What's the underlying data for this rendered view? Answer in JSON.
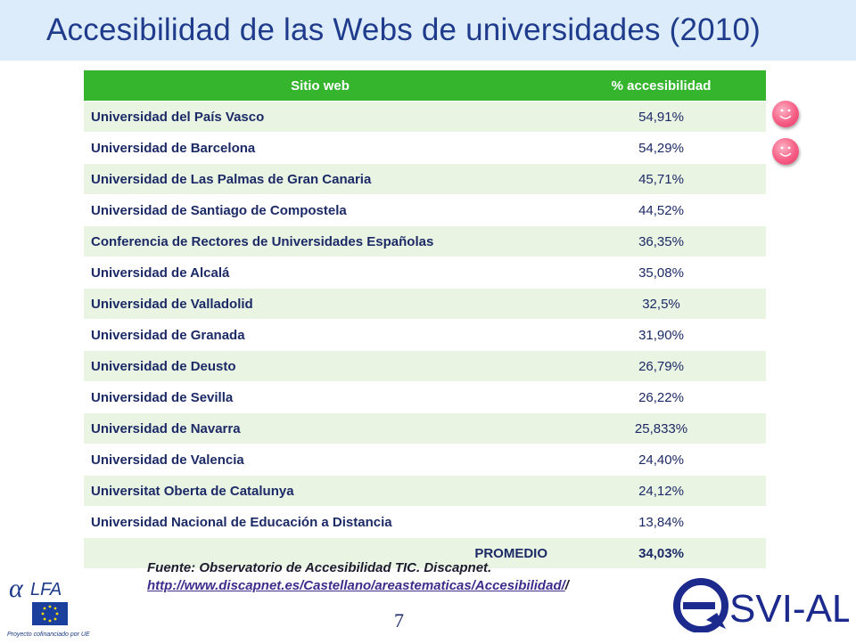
{
  "title": "Accesibilidad  de las Webs de universidades (2010)",
  "table": {
    "headers": [
      "Sitio web",
      "% accesibilidad"
    ],
    "rows": [
      {
        "site": "Universidad del País Vasco",
        "pct": "54,91%"
      },
      {
        "site": "Universidad de Barcelona",
        "pct": "54,29%"
      },
      {
        "site": "Universidad de Las Palmas de Gran Canaria",
        "pct": "45,71%"
      },
      {
        "site": "Universidad de Santiago de Compostela",
        "pct": "44,52%"
      },
      {
        "site": "Conferencia de Rectores de Universidades Españolas",
        "pct": "36,35%"
      },
      {
        "site": "Universidad de Alcalá",
        "pct": "35,08%"
      },
      {
        "site": "Universidad de Valladolid",
        "pct": "32,5%"
      },
      {
        "site": "Universidad de Granada",
        "pct": "31,90%"
      },
      {
        "site": "Universidad de Deusto",
        "pct": "26,79%"
      },
      {
        "site": "Universidad de Sevilla",
        "pct": "26,22%"
      },
      {
        "site": "Universidad de Navarra",
        "pct": "25,833%"
      },
      {
        "site": "Universidad de Valencia",
        "pct": "24,40%"
      },
      {
        "site": "Universitat Oberta de Catalunya",
        "pct": "24,12%"
      },
      {
        "site": "Universidad Nacional de Educación a Distancia",
        "pct": "13,84%"
      }
    ],
    "total": {
      "label": "PROMEDIO",
      "pct": "34,03%"
    }
  },
  "source": {
    "text": "Fuente: Observatorio de Accesibilidad TIC. Discapnet.",
    "link": "http://www.discapnet.es/Castellano/areastematicas/Accesibilidad/",
    "link_suffix": "/"
  },
  "page_number": "7",
  "logos": {
    "alfa": {
      "text": "LFA",
      "caption": "Proyecto cofinanciado por UE"
    },
    "esvi": {
      "text": "SVI-AL"
    }
  },
  "smiley_icons": [
    "smiley-icon",
    "smiley-icon"
  ],
  "colors": {
    "title": "#1f3b8c",
    "title_bar": "#dcecfa",
    "header_green": "#34b52d",
    "row_tint": "#e9f4e3",
    "text_navy": "#1c2a66",
    "smiley_pink": "#f65d85"
  }
}
